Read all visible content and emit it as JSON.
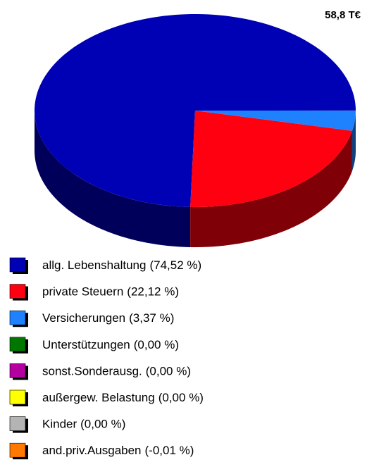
{
  "chart_data": {
    "type": "pie",
    "annotation": "58,8 T€",
    "categories": [
      "allg. Lebenshaltung",
      "private Steuern",
      "Versicherungen",
      "Unterstützungen",
      "sonst.Sonderausg.",
      "außergew. Belastung",
      "Kinder",
      "and.priv.Ausgaben"
    ],
    "values": [
      74.52,
      22.12,
      3.37,
      0,
      0,
      0,
      0,
      -0.01
    ],
    "value_labels": [
      "(74,52 %)",
      "(22,12 %)",
      "(3,37 %)",
      "(0,00 %)",
      "(0,00 %)",
      "(0,00 %)",
      "(0,00 %)",
      "(-0,01 %)"
    ],
    "colors": [
      "#0000b4",
      "#ff0010",
      "#1e82ff",
      "#007800",
      "#b400a0",
      "#ffff00",
      "#b4b4b4",
      "#ff7800"
    ]
  }
}
